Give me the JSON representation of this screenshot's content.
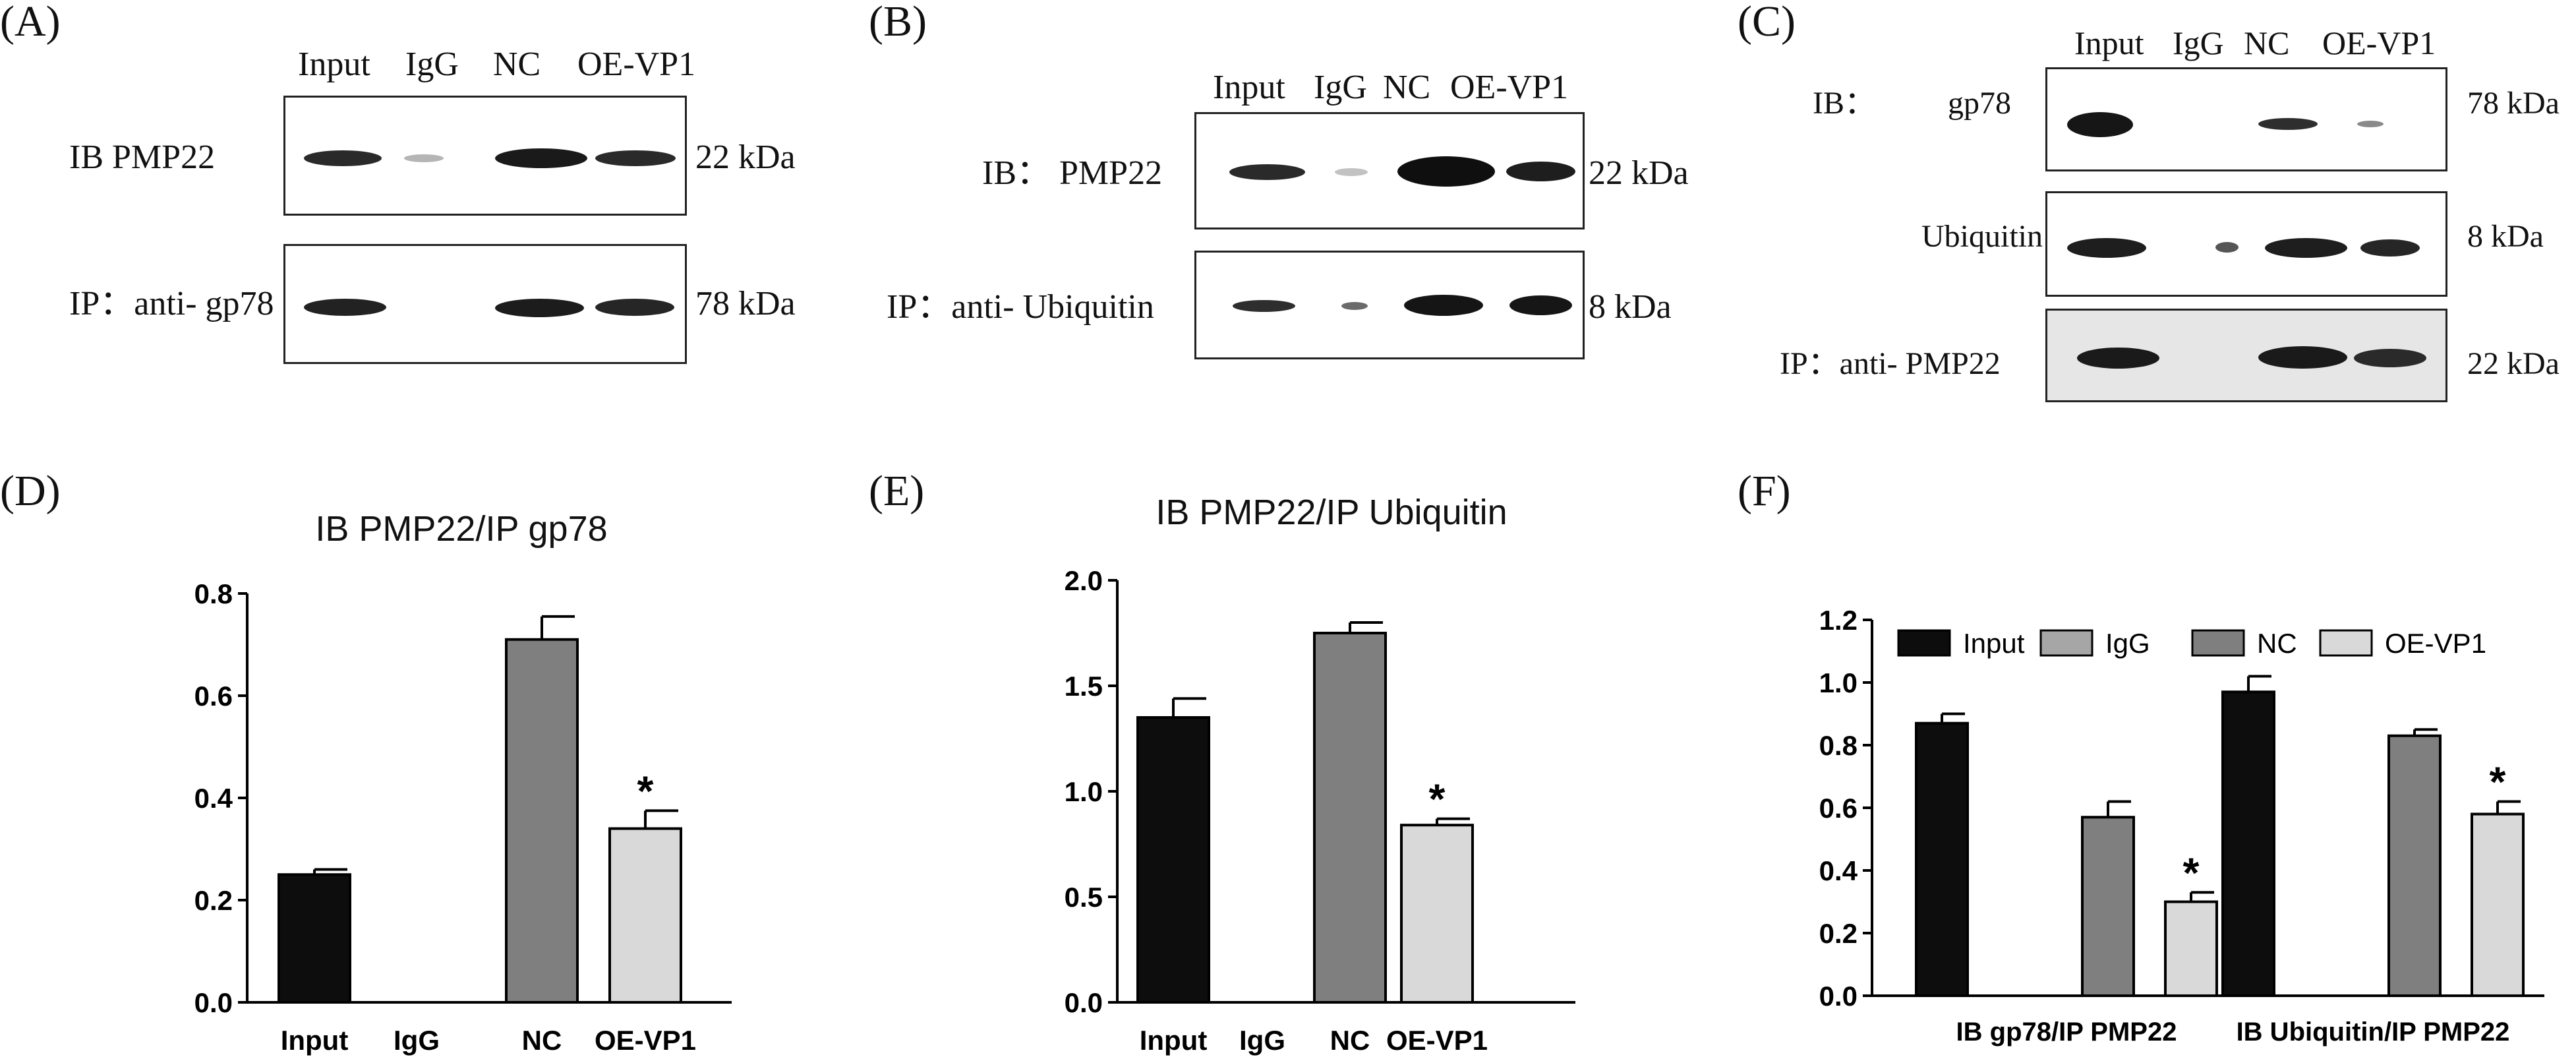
{
  "panel_letters": {
    "a": "(A)",
    "b": "(B)",
    "c": "(C)",
    "d": "(D)",
    "e": "(E)",
    "f": "(F)"
  },
  "blot_a": {
    "lanes": [
      "Input",
      "IgG",
      "NC",
      "OE-VP1"
    ],
    "rows": [
      {
        "label": "IB PMP22",
        "size": "22 kDa"
      },
      {
        "label": "IP：anti- gp78",
        "size": "78 kDa"
      }
    ]
  },
  "blot_b": {
    "lanes": [
      "Input",
      "IgG",
      "NC",
      "OE-VP1"
    ],
    "rows": [
      {
        "label": "IB： PMP22",
        "size": "22 kDa"
      },
      {
        "label": "IP：anti- Ubiquitin",
        "size": "8 kDa"
      }
    ]
  },
  "blot_c": {
    "lanes": [
      "Input",
      "IgG",
      "NC",
      "OE-VP1"
    ],
    "ib_prefix": "IB：",
    "rows": [
      {
        "label": "gp78",
        "size": "78 kDa"
      },
      {
        "label": "Ubiquitin",
        "size": "8 kDa"
      },
      {
        "label": "IP：anti- PMP22",
        "size": "22 kDa"
      }
    ]
  },
  "chart_data": [
    {
      "type": "bar",
      "title": "IB PMP22/IP gp78",
      "categories": [
        "Input",
        "IgG",
        "NC",
        "OE-VP1"
      ],
      "values": [
        0.25,
        0,
        0.71,
        0.34
      ],
      "errors": [
        0.01,
        0,
        0.045,
        0.035
      ],
      "significance": [
        "",
        "",
        "",
        "*"
      ],
      "colors": [
        "#0d0d0d",
        "#ffffff",
        "#7f7f7f",
        "#d9d9d9"
      ],
      "ylim": [
        0,
        0.8
      ],
      "yticks": [
        "0.0",
        "0.2",
        "0.4",
        "0.6",
        "0.8"
      ],
      "xlabel": "",
      "ylabel": ""
    },
    {
      "type": "bar",
      "title": "IB PMP22/IP Ubiquitin",
      "categories": [
        "Input",
        "IgG",
        "NC",
        "OE-VP1"
      ],
      "values": [
        1.35,
        0,
        1.75,
        0.84
      ],
      "errors": [
        0.09,
        0,
        0.05,
        0.03
      ],
      "significance": [
        "",
        "",
        "",
        "*"
      ],
      "colors": [
        "#0d0d0d",
        "#ffffff",
        "#7f7f7f",
        "#d9d9d9"
      ],
      "ylim": [
        0,
        2.0
      ],
      "yticks": [
        "0.0",
        "0.5",
        "1.0",
        "1.5",
        "2.0"
      ],
      "xlabel": "",
      "ylabel": ""
    },
    {
      "type": "bar",
      "title": "",
      "categories": [
        "IB gp78/IP PMP22",
        "IB Ubiquitin/IP PMP22"
      ],
      "legend_position": "top",
      "series": [
        {
          "name": "Input",
          "color": "#0d0d0d",
          "values": [
            0.87,
            0.97
          ],
          "errors": [
            0.03,
            0.05
          ],
          "significance": [
            "",
            ""
          ]
        },
        {
          "name": "IgG",
          "color": "#a6a6a6",
          "values": [
            0,
            0
          ],
          "errors": [
            0,
            0
          ],
          "significance": [
            "",
            ""
          ]
        },
        {
          "name": "NC",
          "color": "#7f7f7f",
          "values": [
            0.57,
            0.83
          ],
          "errors": [
            0.05,
            0.02
          ],
          "significance": [
            "",
            ""
          ]
        },
        {
          "name": "OE-VP1",
          "color": "#d9d9d9",
          "values": [
            0.3,
            0.58
          ],
          "errors": [
            0.03,
            0.04
          ],
          "significance": [
            "*",
            "*"
          ]
        }
      ],
      "ylim": [
        0,
        1.2
      ],
      "yticks": [
        "0.0",
        "0.2",
        "0.4",
        "0.6",
        "0.8",
        "1.0",
        "1.2"
      ],
      "xlabel": "",
      "ylabel": ""
    }
  ]
}
